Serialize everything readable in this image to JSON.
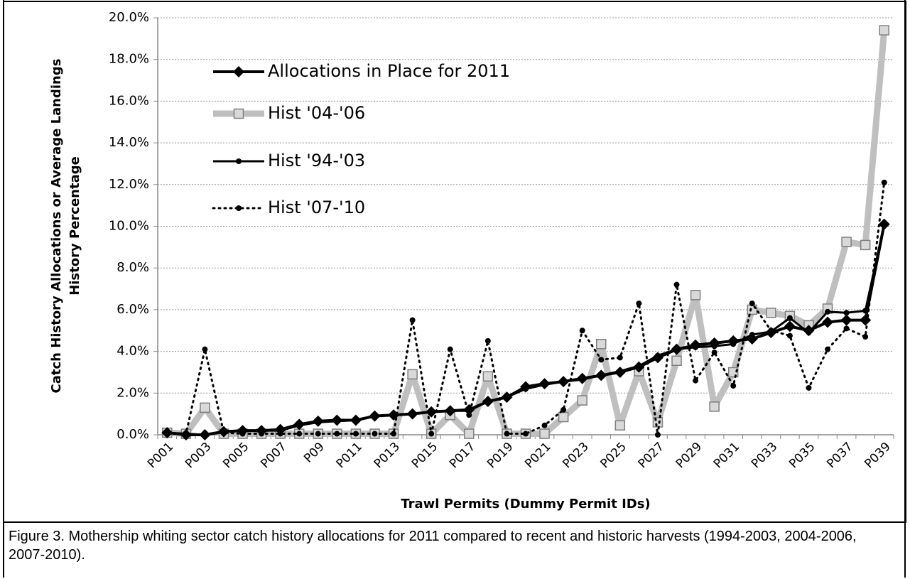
{
  "chart_data": {
    "type": "line",
    "ylabel_lines": [
      "Catch History Allocations or Average Landings",
      "History Percentage"
    ],
    "x_label": "Trawl Permits (Dummy Permit IDs)",
    "caption": "Figure 3.  Mothership whiting sector catch history allocations for 2011 compared to recent and historic harvests (1994-2003, 2004-2006, 2007-2010).",
    "categories": [
      "P001",
      null,
      "P003",
      null,
      "P005",
      null,
      "P007",
      null,
      "P09",
      null,
      "P011",
      null,
      "P013",
      null,
      "P015",
      null,
      "P017",
      null,
      "P019",
      null,
      "P021",
      null,
      "P023",
      null,
      "P025",
      null,
      "P027",
      null,
      "P029",
      null,
      "P031",
      null,
      "P033",
      null,
      "P035",
      null,
      "P037",
      null,
      "P039"
    ],
    "ylim": [
      0,
      20
    ],
    "yticks": [
      {
        "value": 0,
        "label": "0.0%"
      },
      {
        "value": 2,
        "label": "2.0%"
      },
      {
        "value": 4,
        "label": "4.0%"
      },
      {
        "value": 6,
        "label": "6.0%"
      },
      {
        "value": 8,
        "label": "8.0%"
      },
      {
        "value": 10,
        "label": "10.0%"
      },
      {
        "value": 12,
        "label": "12.0%"
      },
      {
        "value": 14,
        "label": "14.0%"
      },
      {
        "value": 16,
        "label": "16.0%"
      },
      {
        "value": 18,
        "label": "18.0%"
      },
      {
        "value": 20,
        "label": "20.0%"
      }
    ],
    "grid": true,
    "legend": "upper left",
    "series": [
      {
        "name": "Allocations in Place for 2011",
        "color": "#000000",
        "line_width": 4,
        "marker": "diamond",
        "values": [
          0.1,
          0.0,
          0.0,
          0.15,
          0.2,
          0.2,
          0.25,
          0.5,
          0.65,
          0.7,
          0.7,
          0.9,
          0.95,
          1.0,
          1.1,
          1.15,
          1.2,
          1.6,
          1.8,
          2.3,
          2.45,
          2.55,
          2.7,
          2.85,
          3.0,
          3.25,
          3.7,
          4.1,
          4.3,
          4.4,
          4.5,
          4.6,
          4.9,
          5.2,
          5.0,
          5.4,
          5.5,
          5.5,
          10.1
        ]
      },
      {
        "name": "Hist '04-'06",
        "color": "#bfbfbf",
        "line_width": 9,
        "marker": "square",
        "values": [
          0.1,
          0.05,
          1.3,
          0.05,
          0.05,
          0.05,
          0.05,
          0.05,
          0.05,
          0.05,
          0.05,
          0.05,
          0.05,
          2.9,
          0.05,
          0.95,
          0.05,
          2.8,
          0.05,
          0.05,
          0.05,
          0.85,
          1.65,
          4.35,
          0.45,
          3.05,
          0.6,
          3.55,
          6.7,
          1.35,
          3.0,
          6.0,
          5.85,
          5.7,
          5.25,
          6.05,
          9.25,
          9.1,
          19.4
        ]
      },
      {
        "name": "Hist '94-'03",
        "color": "#000000",
        "line_width": 3,
        "marker": "circle",
        "values": [
          0.1,
          0.05,
          0.0,
          0.15,
          0.2,
          0.2,
          0.2,
          0.45,
          0.6,
          0.65,
          0.7,
          0.9,
          0.95,
          1.0,
          1.1,
          1.15,
          1.15,
          1.6,
          1.8,
          2.2,
          2.4,
          2.55,
          2.65,
          2.85,
          3.05,
          3.3,
          3.8,
          4.1,
          4.2,
          4.25,
          4.35,
          4.8,
          4.95,
          5.6,
          4.9,
          5.9,
          5.85,
          5.95,
          10.1
        ]
      },
      {
        "name": "Hist '07-'10",
        "color": "#000000",
        "line_width": 3,
        "marker": "circle",
        "dash": "dotted",
        "values": [
          0.1,
          0.05,
          4.1,
          0.1,
          0.05,
          0.05,
          0.05,
          0.05,
          0.05,
          0.05,
          0.05,
          0.05,
          0.05,
          5.5,
          0.05,
          4.1,
          0.95,
          4.5,
          0.05,
          0.05,
          0.45,
          1.2,
          5.0,
          3.6,
          3.7,
          6.3,
          0.0,
          7.2,
          2.6,
          3.95,
          2.35,
          6.3,
          5.0,
          4.75,
          2.25,
          4.1,
          5.1,
          4.7,
          12.1
        ]
      }
    ]
  }
}
